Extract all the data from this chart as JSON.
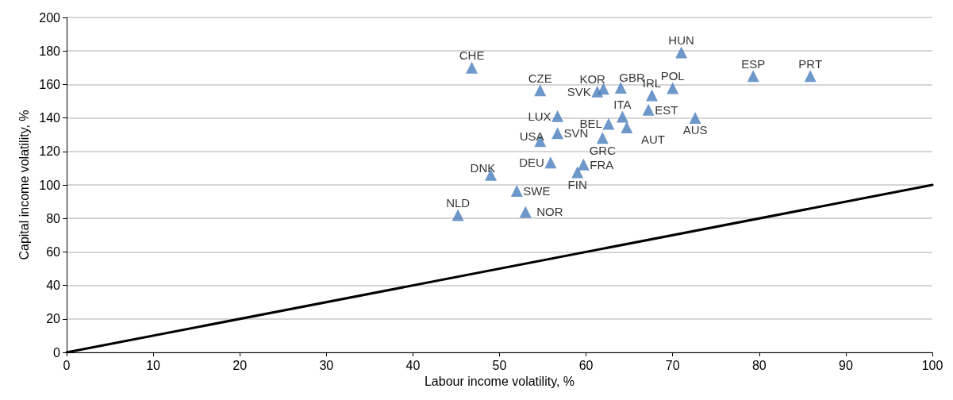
{
  "chart_data": {
    "type": "scatter",
    "xlabel": "Labour income volatility, %",
    "ylabel": "Capital income volatility, %",
    "xlim": [
      0,
      100
    ],
    "xticks": [
      0,
      10,
      20,
      30,
      40,
      50,
      60,
      70,
      80,
      90,
      100
    ],
    "ylim": [
      0,
      200
    ],
    "yticks": [
      0,
      20,
      40,
      60,
      80,
      100,
      120,
      140,
      160,
      180,
      200
    ],
    "grid": "y",
    "marker": "triangle",
    "series": [
      {
        "color": "#4a7ebb",
        "x": [
          46.8,
          54.7,
          61.3,
          62.0,
          64.0,
          67.6,
          70.0,
          71.0,
          79.3,
          85.9,
          56.7,
          64.2,
          67.2,
          72.6,
          62.6,
          64.7,
          56.7,
          61.9,
          54.7,
          55.9,
          59.7,
          59.0,
          49.0,
          52.0,
          53.0,
          45.2
        ],
        "values": [
          170,
          156.5,
          155.8,
          157.5,
          158.1,
          153.6,
          157.8,
          179.1,
          165,
          165,
          141.1,
          140.8,
          144.9,
          140.1,
          136.5,
          134.4,
          130.9,
          128.1,
          126.2,
          113.4,
          112.2,
          107.6,
          106.0,
          96.5,
          83.9,
          82.0
        ]
      },
      {
        "type": "line",
        "color": "#000000",
        "marker": "none",
        "line_style": "solid",
        "x": [
          0,
          100
        ],
        "values": [
          0,
          100
        ]
      }
    ],
    "annotations": [
      {
        "text": "CHE",
        "x": 46.8,
        "y": 170
      },
      {
        "text": "CZE",
        "x": 54.7,
        "y": 156.5
      },
      {
        "text": "SVK",
        "x": 61.3,
        "y": 155.8
      },
      {
        "text": "KOR",
        "x": 62.0,
        "y": 157.5
      },
      {
        "text": "GBR",
        "x": 64.0,
        "y": 158.1
      },
      {
        "text": "IRL",
        "x": 67.6,
        "y": 153.6
      },
      {
        "text": "POL",
        "x": 70.0,
        "y": 157.8
      },
      {
        "text": "HUN",
        "x": 71.0,
        "y": 179.1
      },
      {
        "text": "ESP",
        "x": 79.3,
        "y": 165
      },
      {
        "text": "PRT",
        "x": 85.9,
        "y": 165
      },
      {
        "text": "LUX",
        "x": 56.7,
        "y": 141.1
      },
      {
        "text": "ITA",
        "x": 64.2,
        "y": 140.8
      },
      {
        "text": "EST",
        "x": 67.2,
        "y": 144.9
      },
      {
        "text": "AUS",
        "x": 72.6,
        "y": 140.1
      },
      {
        "text": "BEL",
        "x": 62.6,
        "y": 136.5
      },
      {
        "text": "AUT",
        "x": 64.7,
        "y": 134.4
      },
      {
        "text": "SVN",
        "x": 56.7,
        "y": 130.9
      },
      {
        "text": "GRC",
        "x": 61.9,
        "y": 128.1
      },
      {
        "text": "USA",
        "x": 54.7,
        "y": 126.2
      },
      {
        "text": "DEU",
        "x": 55.9,
        "y": 113.4
      },
      {
        "text": "FRA",
        "x": 59.7,
        "y": 112.2
      },
      {
        "text": "FIN",
        "x": 59.0,
        "y": 107.6
      },
      {
        "text": "DNK",
        "x": 49.0,
        "y": 106.0
      },
      {
        "text": "SWE",
        "x": 52.0,
        "y": 96.5
      },
      {
        "text": "NOR",
        "x": 53.0,
        "y": 83.9
      },
      {
        "text": "NLD",
        "x": 45.2,
        "y": 82.0
      }
    ]
  }
}
